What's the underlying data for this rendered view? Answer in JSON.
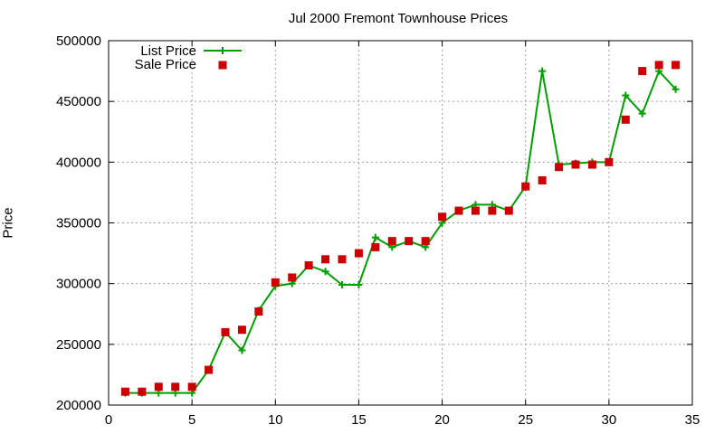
{
  "chart_data": {
    "type": "line",
    "title": "Jul 2000 Fremont Townhouse Prices",
    "xlabel": "",
    "ylabel": "Price",
    "xlim": [
      0,
      35
    ],
    "ylim": [
      200000,
      500000
    ],
    "x_ticks": [
      0,
      5,
      10,
      15,
      20,
      25,
      30,
      35
    ],
    "y_ticks": [
      200000,
      250000,
      300000,
      350000,
      400000,
      450000,
      500000
    ],
    "grid": true,
    "legend_position": "top-left",
    "x": [
      1,
      2,
      3,
      4,
      5,
      6,
      7,
      8,
      9,
      10,
      11,
      12,
      13,
      14,
      15,
      16,
      17,
      18,
      19,
      20,
      21,
      22,
      23,
      24,
      25,
      26,
      27,
      28,
      29,
      30,
      31,
      32,
      33,
      34
    ],
    "series": [
      {
        "name": "List Price",
        "style": "linespoints",
        "color": "#00a000",
        "values": [
          210000,
          210000,
          210000,
          210000,
          210000,
          229000,
          260000,
          245000,
          278000,
          298000,
          300000,
          315000,
          310000,
          299000,
          299000,
          338000,
          330000,
          335000,
          330000,
          350000,
          360000,
          365000,
          365000,
          360000,
          380000,
          475000,
          398000,
          399000,
          400000,
          400000,
          455000,
          440000,
          475000,
          460000
        ]
      },
      {
        "name": "Sale Price",
        "style": "points",
        "color": "#cc0000",
        "values": [
          211000,
          211000,
          215000,
          215000,
          215000,
          229000,
          260000,
          262000,
          277000,
          301000,
          305000,
          315000,
          320000,
          320000,
          325000,
          330000,
          335000,
          335000,
          335000,
          355000,
          360000,
          360000,
          360000,
          360000,
          380000,
          385000,
          396000,
          398000,
          398000,
          400000,
          435000,
          475000,
          480000,
          480000
        ]
      }
    ]
  }
}
